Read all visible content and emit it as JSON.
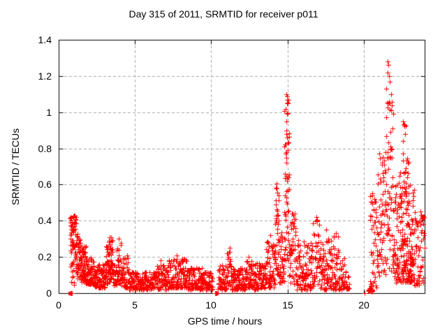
{
  "chart_data": {
    "type": "scatter",
    "title": "Day 315 of 2011, SRMTID for receiver p011",
    "xlabel": "GPS time / hours",
    "ylabel": "SRMTID / TECUs",
    "xlim": [
      0,
      24
    ],
    "ylim": [
      0,
      1.4
    ],
    "xticks": {
      "values": [
        0,
        5,
        10,
        15,
        20
      ],
      "labels": [
        "0",
        "5",
        "10",
        "15",
        "20"
      ]
    },
    "yticks": {
      "values": [
        0,
        0.2,
        0.4,
        0.6,
        0.8,
        1.0,
        1.2,
        1.4
      ],
      "labels": [
        "0",
        "0.2",
        "0.4",
        "0.6",
        "0.8",
        "1",
        "1.2",
        "1.4"
      ]
    },
    "grid": true,
    "legend": "none",
    "marker": {
      "shape": "plus",
      "color": "#ff0000",
      "size": 7
    },
    "colors": {
      "marker": "#ff0000",
      "grid": "#a8a8a8",
      "axis": "#000000",
      "background": "#ffffff",
      "text": "#000000"
    },
    "seed": 1315,
    "zero_squares": [
      0.73,
      10.34
    ],
    "points": [
      [
        0.78,
        0.42
      ],
      [
        0.84,
        0.415
      ],
      [
        0.8,
        0.4
      ],
      [
        1.02,
        0.38
      ],
      [
        3.42,
        0.31
      ],
      [
        3.95,
        0.3
      ],
      [
        4.5,
        0.21
      ],
      [
        6.7,
        0.18
      ],
      [
        7.72,
        0.21
      ],
      [
        8.25,
        0.19
      ],
      [
        11.2,
        0.25
      ],
      [
        11.05,
        0.22
      ],
      [
        12.45,
        0.2
      ],
      [
        13.9,
        0.32
      ],
      [
        14.93,
        1.1
      ],
      [
        14.96,
        1.07
      ],
      [
        14.9,
        1.02
      ],
      [
        14.97,
        0.99
      ],
      [
        14.92,
        0.95
      ],
      [
        14.95,
        0.9
      ],
      [
        14.99,
        0.86
      ],
      [
        14.88,
        0.82
      ],
      [
        14.94,
        0.78
      ],
      [
        14.91,
        0.72
      ],
      [
        15.3,
        0.44
      ],
      [
        16.9,
        0.42
      ],
      [
        16.95,
        0.4
      ],
      [
        17.55,
        0.35
      ],
      [
        18.2,
        0.33
      ],
      [
        20.35,
        0.02
      ],
      [
        20.45,
        0.015
      ],
      [
        20.05,
        0.0
      ],
      [
        20.55,
        0.55
      ],
      [
        20.7,
        0.52
      ],
      [
        21.58,
        1.28
      ],
      [
        21.62,
        1.26
      ],
      [
        21.55,
        1.22
      ],
      [
        21.68,
        1.2
      ],
      [
        21.72,
        1.17
      ],
      [
        21.5,
        1.13
      ],
      [
        21.78,
        1.1
      ],
      [
        21.64,
        1.05
      ],
      [
        21.82,
        1.01
      ],
      [
        21.47,
        0.97
      ],
      [
        22.6,
        0.95
      ],
      [
        22.65,
        0.92
      ],
      [
        22.7,
        0.88
      ],
      [
        22.58,
        0.84
      ],
      [
        23.97,
        0.42
      ],
      [
        23.93,
        0.38
      ],
      [
        23.9,
        0.3
      ],
      [
        23.99,
        0.25
      ],
      [
        0.8,
        0.0
      ],
      [
        0.83,
        0.0
      ],
      [
        0.86,
        0.0
      ],
      [
        10.25,
        0.0
      ],
      [
        10.3,
        0.0
      ],
      [
        10.34,
        0.0
      ]
    ],
    "density_segments": [
      [
        0.75,
        1.15,
        45,
        0.25,
        0.43,
        0.9
      ],
      [
        0.75,
        1.15,
        25,
        0.04,
        0.25,
        1.2
      ],
      [
        1.15,
        1.45,
        45,
        0.08,
        0.33,
        1.4
      ],
      [
        1.45,
        1.8,
        60,
        0.06,
        0.26,
        1.6
      ],
      [
        1.8,
        2.3,
        70,
        0.05,
        0.2,
        1.7
      ],
      [
        2.3,
        3.05,
        90,
        0.03,
        0.16,
        1.5
      ],
      [
        3.05,
        3.35,
        40,
        0.05,
        0.27,
        1.1
      ],
      [
        3.3,
        3.55,
        35,
        0.06,
        0.31,
        1.0
      ],
      [
        3.55,
        3.8,
        25,
        0.04,
        0.16,
        1.4
      ],
      [
        3.8,
        4.1,
        35,
        0.05,
        0.3,
        1.1
      ],
      [
        4.1,
        4.6,
        40,
        0.03,
        0.2,
        1.6
      ],
      [
        4.6,
        6.4,
        150,
        0.02,
        0.12,
        1.3
      ],
      [
        6.4,
        7.2,
        70,
        0.02,
        0.16,
        1.4
      ],
      [
        7.2,
        8.4,
        115,
        0.03,
        0.19,
        1.5
      ],
      [
        8.4,
        9.5,
        105,
        0.02,
        0.14,
        1.4
      ],
      [
        9.5,
        10.1,
        50,
        0.02,
        0.12,
        1.4
      ],
      [
        10.45,
        11.05,
        55,
        0.02,
        0.16,
        1.4
      ],
      [
        11.05,
        11.35,
        25,
        0.04,
        0.24,
        1.1
      ],
      [
        11.35,
        12.3,
        90,
        0.02,
        0.14,
        1.5
      ],
      [
        12.3,
        12.7,
        40,
        0.03,
        0.19,
        1.3
      ],
      [
        12.7,
        13.6,
        85,
        0.02,
        0.17,
        1.4
      ],
      [
        13.6,
        14.2,
        65,
        0.03,
        0.3,
        1.3
      ],
      [
        14.2,
        14.45,
        40,
        0.1,
        0.62,
        1.1
      ],
      [
        14.45,
        14.78,
        35,
        0.05,
        0.35,
        1.3
      ],
      [
        14.78,
        15.12,
        55,
        0.18,
        1.1,
        1.3
      ],
      [
        15.12,
        15.55,
        45,
        0.05,
        0.45,
        1.4
      ],
      [
        15.55,
        16.55,
        95,
        0.02,
        0.3,
        1.5
      ],
      [
        16.55,
        17.1,
        45,
        0.04,
        0.44,
        1.3
      ],
      [
        17.1,
        18.4,
        120,
        0.02,
        0.32,
        1.6
      ],
      [
        18.4,
        19.05,
        45,
        0.02,
        0.2,
        1.6
      ],
      [
        20.3,
        20.6,
        14,
        0.005,
        0.04,
        1.5
      ],
      [
        20.4,
        20.9,
        45,
        0.03,
        0.55,
        1.2
      ],
      [
        20.9,
        21.45,
        60,
        0.08,
        0.8,
        1.1
      ],
      [
        21.45,
        21.95,
        60,
        0.1,
        1.1,
        1.0
      ],
      [
        21.95,
        22.45,
        70,
        0.05,
        0.7,
        1.3
      ],
      [
        22.45,
        23.3,
        150,
        0.06,
        0.6,
        1.5
      ],
      [
        22.55,
        22.95,
        18,
        0.6,
        0.95,
        1.0
      ],
      [
        23.3,
        23.95,
        60,
        0.04,
        0.45,
        1.3
      ]
    ]
  }
}
